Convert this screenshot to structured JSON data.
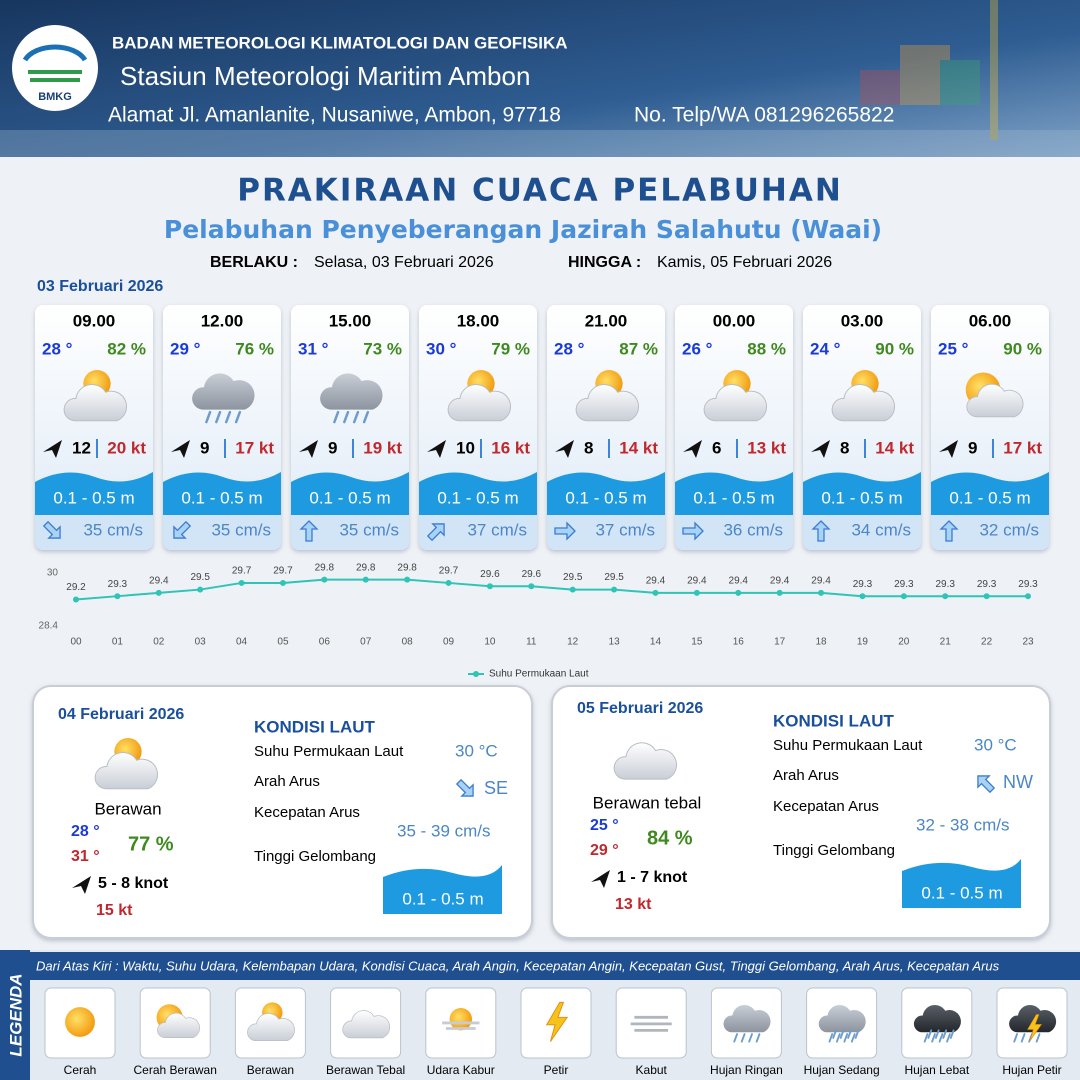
{
  "header": {
    "agency": "BADAN METEOROLOGI KLIMATOLOGI DAN GEOFISIKA",
    "station": "Stasiun Meteorologi Maritim Ambon",
    "address": "Alamat Jl. Amanlanite, Nusaniwe, Ambon, 97718",
    "phone": "No. Telp/WA  081296265822",
    "logo_text": "BMKG"
  },
  "title": "PRAKIRAAN CUACA PELABUHAN",
  "subtitle": "Pelabuhan Penyeberangan Jazirah Salahutu (Waai)",
  "validity": {
    "from_label": "BERLAKU :",
    "from": "Selasa, 03 Februari 2026",
    "until_label": "HINGGA :",
    "until": "Kamis, 05 Februari 2026"
  },
  "day1_date": "03 Februari 2026",
  "cards": [
    {
      "time": "09.00",
      "temp": "28 °",
      "humidity": "82 %",
      "wind": "12",
      "gust": "20 kt",
      "wave": "0.1 - 0.5 m",
      "current": "35 cm/s"
    },
    {
      "time": "12.00",
      "temp": "29 °",
      "humidity": "76 %",
      "wind": "9",
      "gust": "17 kt",
      "wave": "0.1 - 0.5 m",
      "current": "35 cm/s"
    },
    {
      "time": "15.00",
      "temp": "31 °",
      "humidity": "73 %",
      "wind": "9",
      "gust": "19 kt",
      "wave": "0.1 - 0.5 m",
      "current": "35 cm/s"
    },
    {
      "time": "18.00",
      "temp": "30 °",
      "humidity": "79 %",
      "wind": "10",
      "gust": "16 kt",
      "wave": "0.1 - 0.5 m",
      "current": "37 cm/s"
    },
    {
      "time": "21.00",
      "temp": "28 °",
      "humidity": "87 %",
      "wind": "8",
      "gust": "14 kt",
      "wave": "0.1 - 0.5 m",
      "current": "37 cm/s"
    },
    {
      "time": "00.00",
      "temp": "26 °",
      "humidity": "88 %",
      "wind": "6",
      "gust": "13 kt",
      "wave": "0.1 - 0.5 m",
      "current": "36 cm/s"
    },
    {
      "time": "03.00",
      "temp": "24 °",
      "humidity": "90 %",
      "wind": "8",
      "gust": "14 kt",
      "wave": "0.1 - 0.5 m",
      "current": "34 cm/s"
    },
    {
      "time": "06.00",
      "temp": "25 °",
      "humidity": "90 %",
      "wind": "9",
      "gust": "17 kt",
      "wave": "0.1 - 0.5 m",
      "current": "32 cm/s"
    }
  ],
  "chart_data": {
    "type": "line",
    "categories": [
      "00",
      "01",
      "02",
      "03",
      "04",
      "05",
      "06",
      "07",
      "08",
      "09",
      "10",
      "11",
      "12",
      "13",
      "14",
      "15",
      "16",
      "17",
      "18",
      "19",
      "20",
      "21",
      "22",
      "23"
    ],
    "series": [
      {
        "name": "Suhu Permukaan Laut",
        "color": "#2ec4b6",
        "values": [
          29.2,
          29.3,
          29.4,
          29.5,
          29.7,
          29.7,
          29.8,
          29.8,
          29.8,
          29.7,
          29.6,
          29.6,
          29.5,
          29.5,
          29.4,
          29.4,
          29.4,
          29.4,
          29.4,
          29.3,
          29.3,
          29.3,
          29.3,
          29.3
        ]
      }
    ],
    "ylim": [
      28.4,
      30
    ],
    "yticks": [
      28.4,
      30
    ],
    "grid": false,
    "legend": "bottom"
  },
  "days": [
    {
      "date": "04 Februari 2026",
      "condition": "Berawan",
      "temp_min": "28 °",
      "temp_max": "31 °",
      "humidity": "77 %",
      "wind": "5 - 8 knot",
      "gust": "15 kt",
      "sea_heading": "KONDISI LAUT",
      "sst_label": "Suhu Permukaan Laut",
      "sst": "30 °C",
      "dir_label": "Arah Arus",
      "dir": "SE",
      "speed_label": "Kecepatan Arus",
      "speed": "35 - 39 cm/s",
      "wave_label": "Tinggi Gelombang",
      "wave": "0.1 - 0.5 m"
    },
    {
      "date": "05 Februari 2026",
      "condition": "Berawan tebal",
      "temp_min": "25 °",
      "temp_max": "29 °",
      "humidity": "84 %",
      "wind": "1 - 7 knot",
      "gust": "13 kt",
      "sea_heading": "KONDISI LAUT",
      "sst_label": "Suhu Permukaan Laut",
      "sst": "30 °C",
      "dir_label": "Arah Arus",
      "dir": "NW",
      "speed_label": "Kecepatan Arus",
      "speed": "32 - 38 cm/s",
      "wave_label": "Tinggi Gelombang",
      "wave": "0.1 - 0.5 m"
    }
  ],
  "legend": {
    "title": "LEGENDA",
    "description": "Dari Atas Kiri : Waktu, Suhu Udara, Kelembapan Udara, Kondisi Cuaca, Arah Angin, Kecepatan Angin, Kecepatan Gust, Tinggi Gelombang, Arah Arus, Kecepatan Arus",
    "items": [
      "Cerah",
      "Cerah Berawan",
      "Berawan",
      "Berawan Tebal",
      "Udara Kabur",
      "Petir",
      "Kabut",
      "Hujan Ringan",
      "Hujan Sedang",
      "Hujan Lebat",
      "Hujan Petir"
    ]
  }
}
